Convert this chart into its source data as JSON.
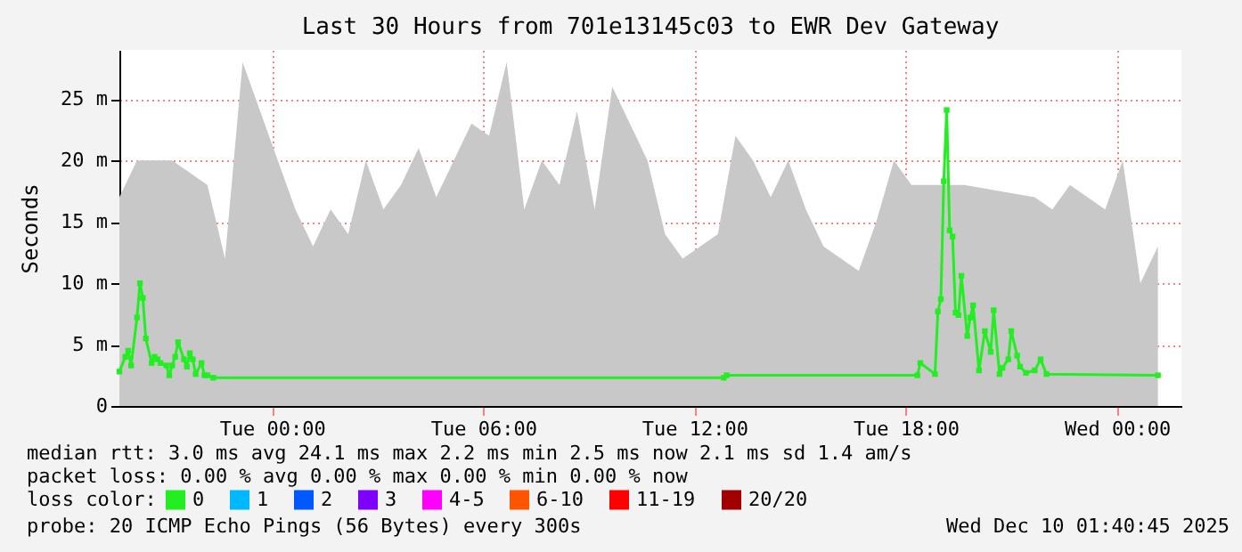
{
  "chart_data": {
    "type": "line",
    "title": "Last 30 Hours from 701e13145c03 to EWR Dev Gateway",
    "ylabel": "Seconds",
    "xlim": [
      "2025-12-08T19:40",
      "2025-12-10T01:50"
    ],
    "xticks": [
      {
        "value": "2025-12-09T00:00",
        "label": "Tue 00:00"
      },
      {
        "value": "2025-12-09T06:00",
        "label": "Tue 06:00"
      },
      {
        "value": "2025-12-09T12:00",
        "label": "Tue 12:00"
      },
      {
        "value": "2025-12-09T18:00",
        "label": "Tue 18:00"
      },
      {
        "value": "2025-12-10T00:00",
        "label": "Wed 00:00"
      }
    ],
    "ylim": [
      0,
      29
    ],
    "yticks": [
      0,
      {
        "value": 5,
        "label": "5 m"
      },
      {
        "value": 10,
        "label": "10 m"
      },
      {
        "value": 15,
        "label": "15 m"
      },
      {
        "value": 20,
        "label": "20 m"
      },
      {
        "value": 25,
        "label": "25 m"
      }
    ],
    "grid": true,
    "legend": "bottom left",
    "legend_title": "loss color:",
    "line_style": "solid",
    "series": [
      {
        "type": "area",
        "color": "#c8c8c8",
        "x": [
          "2025-12-08T19:40",
          "2025-12-08T20:10",
          "2025-12-08T20:40",
          "2025-12-08T21:10",
          "2025-12-08T21:40",
          "2025-12-08T22:10",
          "2025-12-08T22:40",
          "2025-12-08T23:10",
          "2025-12-08T23:40",
          "2025-12-09T00:10",
          "2025-12-09T00:40",
          "2025-12-09T01:10",
          "2025-12-09T01:40",
          "2025-12-09T02:10",
          "2025-12-09T02:40",
          "2025-12-09T03:10",
          "2025-12-09T03:40",
          "2025-12-09T04:10",
          "2025-12-09T04:40",
          "2025-12-09T05:10",
          "2025-12-09T05:40",
          "2025-12-09T06:10",
          "2025-12-09T06:40",
          "2025-12-09T07:10",
          "2025-12-09T07:40",
          "2025-12-09T08:10",
          "2025-12-09T08:40",
          "2025-12-09T09:10",
          "2025-12-09T09:40",
          "2025-12-09T10:10",
          "2025-12-09T10:40",
          "2025-12-09T11:10",
          "2025-12-09T11:40",
          "2025-12-09T12:10",
          "2025-12-09T12:40",
          "2025-12-09T13:10",
          "2025-12-09T13:40",
          "2025-12-09T14:10",
          "2025-12-09T14:40",
          "2025-12-09T15:10",
          "2025-12-09T15:40",
          "2025-12-09T16:10",
          "2025-12-09T16:40",
          "2025-12-09T17:10",
          "2025-12-09T17:40",
          "2025-12-09T18:10",
          "2025-12-09T18:40",
          "2025-12-09T19:10",
          "2025-12-09T19:40",
          "2025-12-09T20:10",
          "2025-12-09T20:40",
          "2025-12-09T21:10",
          "2025-12-09T21:40",
          "2025-12-09T22:10",
          "2025-12-09T22:40",
          "2025-12-09T23:10",
          "2025-12-09T23:40",
          "2025-12-10T00:10",
          "2025-12-10T00:40",
          "2025-12-10T01:10"
        ],
        "values": [
          17,
          20,
          null,
          20,
          null,
          18,
          12,
          28,
          null,
          20,
          16,
          13,
          16,
          14,
          20,
          16,
          18,
          21,
          17,
          20,
          23,
          22,
          28,
          16,
          20,
          18,
          24,
          16,
          26,
          23,
          20,
          14,
          12,
          13,
          14,
          22,
          20,
          17,
          20,
          16,
          13,
          12,
          11,
          15,
          20,
          18,
          null,
          null,
          18,
          null,
          null,
          null,
          17,
          16,
          18,
          17,
          16,
          20,
          10,
          13
        ]
      },
      {
        "name": "0",
        "color": "#22ee22",
        "marker": "square",
        "x": [
          "2025-12-08T19:40",
          "2025-12-08T19:50",
          "2025-12-08T19:55",
          "2025-12-08T20:00",
          "2025-12-08T20:10",
          "2025-12-08T20:15",
          "2025-12-08T20:20",
          "2025-12-08T20:25",
          "2025-12-08T20:35",
          "2025-12-08T20:40",
          "2025-12-08T20:45",
          "2025-12-08T20:50",
          "2025-12-08T21:00",
          "2025-12-08T21:05",
          "2025-12-08T21:10",
          "2025-12-08T21:15",
          "2025-12-08T21:20",
          "2025-12-08T21:30",
          "2025-12-08T21:35",
          "2025-12-08T21:40",
          "2025-12-08T21:45",
          "2025-12-08T21:50",
          "2025-12-08T22:00",
          "2025-12-08T22:05",
          "2025-12-08T22:10",
          "2025-12-08T22:20",
          "2025-12-09T12:50",
          "2025-12-09T12:55",
          "2025-12-09T18:20",
          "2025-12-09T18:25",
          "2025-12-09T18:50",
          "2025-12-09T18:55",
          "2025-12-09T19:00",
          "2025-12-09T19:05",
          "2025-12-09T19:10",
          "2025-12-09T19:15",
          "2025-12-09T19:20",
          "2025-12-09T19:25",
          "2025-12-09T19:30",
          "2025-12-09T19:35",
          "2025-12-09T19:45",
          "2025-12-09T19:50",
          "2025-12-09T19:55",
          "2025-12-09T20:05",
          "2025-12-09T20:15",
          "2025-12-09T20:25",
          "2025-12-09T20:30",
          "2025-12-09T20:40",
          "2025-12-09T20:45",
          "2025-12-09T20:55",
          "2025-12-09T21:00",
          "2025-12-09T21:10",
          "2025-12-09T21:15",
          "2025-12-09T21:25",
          "2025-12-09T21:40",
          "2025-12-09T21:50",
          "2025-12-09T22:00",
          "2025-12-10T01:10"
        ],
        "values": [
          2.8,
          4.0,
          4.5,
          3.3,
          7.2,
          10.0,
          8.8,
          5.5,
          3.5,
          4.0,
          3.8,
          3.5,
          3.3,
          2.5,
          3.3,
          4.0,
          5.2,
          3.8,
          3.2,
          4.3,
          3.8,
          2.6,
          3.5,
          2.5,
          2.5,
          2.3,
          2.3,
          2.5,
          2.5,
          3.5,
          2.6,
          7.7,
          8.7,
          18.3,
          24.1,
          14.3,
          13.8,
          7.6,
          7.4,
          10.6,
          5.7,
          7.2,
          8.2,
          2.9,
          6.1,
          4.4,
          7.8,
          2.6,
          3.1,
          3.8,
          6.1,
          4.1,
          3.2,
          2.7,
          2.9,
          3.8,
          2.6,
          2.5
        ]
      },
      {
        "name": "1",
        "color": "#00b8ff"
      },
      {
        "name": "2",
        "color": "#0059ff"
      },
      {
        "name": "3",
        "color": "#7e00ff"
      },
      {
        "name": "4-5",
        "color": "#ff00ff"
      },
      {
        "name": "6-10",
        "color": "#ff5500"
      },
      {
        "name": "11-19",
        "color": "#ff0000"
      },
      {
        "name": "20/20",
        "color": "#a10000"
      }
    ],
    "annotations": [
      "median rtt:  3.0 ms avg  24.1 ms max  2.2 ms min  2.5 ms now  2.1 ms sd  1.4   am/s",
      "packet loss: 0.00 % avg  0.00 % max  0.00 % min  0.00 % now",
      "probe:       20 ICMP Echo Pings (56 Bytes) every 300s",
      "Wed Dec 10 01:40:45 2025"
    ]
  }
}
